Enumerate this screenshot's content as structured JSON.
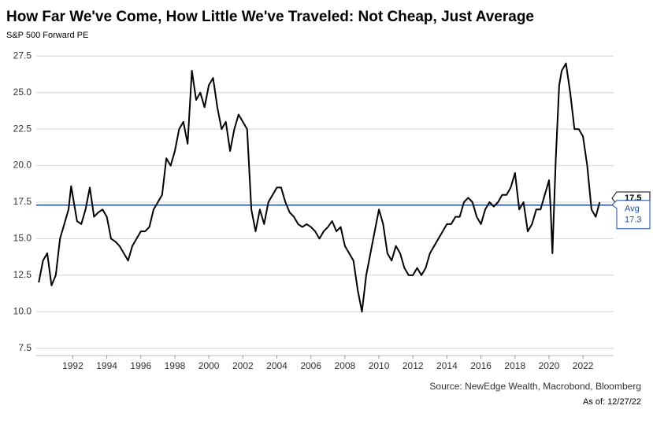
{
  "chart_data": {
    "type": "line",
    "title": "How Far We've Come, How Little We've Traveled: Not Cheap, Just Average",
    "subtitle": "S&P 500 Forward PE",
    "source": "Source: NewEdge Wealth, Macrobond, Bloomberg",
    "as_of": "As of: 12/27/22",
    "grid": true,
    "xlim": [
      1989.85,
      2023.8
    ],
    "xticks": [
      1992,
      1994,
      1996,
      1998,
      2000,
      2002,
      2004,
      2006,
      2008,
      2010,
      2012,
      2014,
      2016,
      2018,
      2020,
      2022
    ],
    "ylim": [
      7,
      28
    ],
    "yticks": [
      27.5,
      {
        "value": 25,
        "label": "25.0"
      },
      22.5,
      {
        "value": 20,
        "label": "20.0"
      },
      17.5,
      {
        "value": 15,
        "label": "15.0"
      },
      12.5,
      {
        "value": 10,
        "label": "10.0"
      },
      7.5
    ],
    "avg_line": {
      "label": "Avg",
      "value": 17.3,
      "color": "#1f4e9c"
    },
    "x": [
      1990.0,
      1990.25,
      1990.5,
      1990.75,
      1991.0,
      1991.25,
      1991.5,
      1991.75,
      1991.9,
      1992.25,
      1992.5,
      1992.75,
      1993.0,
      1993.25,
      1993.5,
      1993.75,
      1994.0,
      1994.25,
      1994.5,
      1994.75,
      1995.0,
      1995.25,
      1995.5,
      1995.75,
      1996.0,
      1996.25,
      1996.5,
      1996.75,
      1997.0,
      1997.25,
      1997.5,
      1997.75,
      1998.0,
      1998.25,
      1998.5,
      1998.75,
      1999.0,
      1999.25,
      1999.5,
      1999.75,
      2000.0,
      2000.25,
      2000.5,
      2000.75,
      2001.0,
      2001.25,
      2001.5,
      2001.75,
      2002.0,
      2002.25,
      2002.5,
      2002.75,
      2003.0,
      2003.25,
      2003.5,
      2003.75,
      2004.0,
      2004.25,
      2004.5,
      2004.75,
      2005.0,
      2005.25,
      2005.5,
      2005.75,
      2006.0,
      2006.25,
      2006.5,
      2006.75,
      2007.0,
      2007.25,
      2007.5,
      2007.75,
      2008.0,
      2008.25,
      2008.5,
      2008.75,
      2009.0,
      2009.25,
      2009.5,
      2009.75,
      2010.0,
      2010.25,
      2010.5,
      2010.75,
      2011.0,
      2011.25,
      2011.5,
      2011.75,
      2012.0,
      2012.25,
      2012.5,
      2012.75,
      2013.0,
      2013.25,
      2013.5,
      2013.75,
      2014.0,
      2014.25,
      2014.5,
      2014.75,
      2015.0,
      2015.25,
      2015.5,
      2015.75,
      2016.0,
      2016.25,
      2016.5,
      2016.75,
      2017.0,
      2017.25,
      2017.5,
      2017.75,
      2018.0,
      2018.25,
      2018.5,
      2018.75,
      2019.0,
      2019.25,
      2019.5,
      2019.75,
      2020.0,
      2020.1,
      2020.2,
      2020.4,
      2020.6,
      2020.75,
      2021.0,
      2021.25,
      2021.5,
      2021.75,
      2022.0,
      2022.25,
      2022.5,
      2022.75,
      2022.98
    ],
    "series": [
      {
        "name": "S&P 500 Forward PE",
        "color": "#000000",
        "values": [
          12.0,
          13.5,
          14.0,
          11.8,
          12.5,
          15.0,
          16.0,
          17.0,
          18.6,
          16.2,
          16.0,
          17.0,
          18.5,
          16.5,
          16.8,
          17.0,
          16.5,
          15.0,
          14.8,
          14.5,
          14.0,
          13.5,
          14.5,
          15.0,
          15.5,
          15.5,
          15.8,
          17.0,
          17.5,
          18.0,
          20.5,
          20.0,
          21.0,
          22.5,
          23.0,
          21.5,
          26.5,
          24.5,
          25.0,
          24.0,
          25.5,
          26.0,
          24.0,
          22.5,
          23.0,
          21.0,
          22.5,
          23.5,
          23.0,
          22.5,
          17.0,
          15.5,
          17.0,
          16.0,
          17.5,
          18.0,
          18.5,
          18.5,
          17.5,
          16.8,
          16.5,
          16.0,
          15.8,
          16.0,
          15.8,
          15.5,
          15.0,
          15.5,
          15.8,
          16.2,
          15.5,
          15.8,
          14.5,
          14.0,
          13.5,
          11.5,
          10.0,
          12.5,
          14.0,
          15.5,
          17.0,
          16.0,
          14.0,
          13.5,
          14.5,
          14.0,
          13.0,
          12.5,
          12.5,
          13.0,
          12.5,
          13.0,
          14.0,
          14.5,
          15.0,
          15.5,
          16.0,
          16.0,
          16.5,
          16.5,
          17.5,
          17.8,
          17.5,
          16.5,
          16.0,
          17.0,
          17.5,
          17.2,
          17.5,
          18.0,
          18.0,
          18.5,
          19.5,
          17.0,
          17.5,
          15.5,
          16.0,
          17.0,
          17.0,
          18.0,
          19.0,
          17.0,
          14.0,
          20.5,
          25.5,
          26.5,
          27.0,
          25.0,
          22.5,
          22.5,
          22.0,
          20.0,
          17.0,
          16.5,
          17.5
        ]
      }
    ]
  }
}
